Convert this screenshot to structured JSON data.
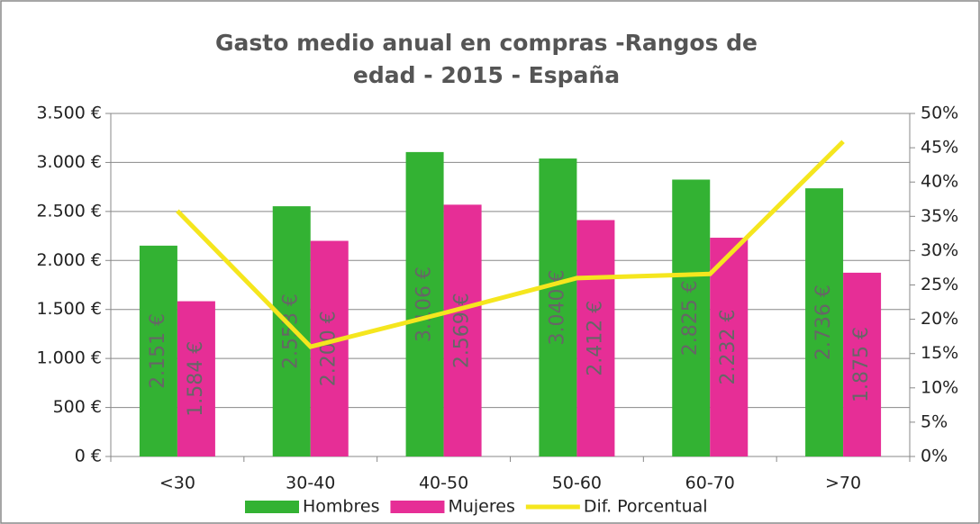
{
  "chart_data": {
    "type": "bar",
    "title": "Gasto medio anual en compras  -Rangos de edad - 2015  - España",
    "categories": [
      "<30",
      "30-40",
      "40-50",
      "50-60",
      "60-70",
      ">70"
    ],
    "series": [
      {
        "name": "Hombres",
        "color": "#33b233",
        "values": [
          2151,
          2553,
          3106,
          3040,
          2825,
          2736
        ],
        "value_labels": [
          "2.151 €",
          "2.553 €",
          "3.106 €",
          "3.040 €",
          "2.825 €",
          "2.736 €"
        ]
      },
      {
        "name": "Mujeres",
        "color": "#e62e96",
        "values": [
          1584,
          2200,
          2569,
          2412,
          2232,
          1875
        ],
        "value_labels": [
          "1.584 €",
          "2.200 €",
          "2.569 €",
          "2.412 €",
          "2.232 €",
          "1.875 €"
        ]
      },
      {
        "name": "Dif. Porcentual",
        "color": "#f5e61e",
        "type": "line",
        "axis": "y2",
        "values": [
          35.8,
          16.0,
          20.9,
          26.0,
          26.6,
          45.9
        ]
      }
    ],
    "ylim": [
      0,
      3500
    ],
    "yticks": [
      {
        "value": 0,
        "label": "0 €"
      },
      {
        "value": 500,
        "label": "500 €"
      },
      {
        "value": 1000,
        "label": "1.000 €"
      },
      {
        "value": 1500,
        "label": "1.500 €"
      },
      {
        "value": 2000,
        "label": "2.000 €"
      },
      {
        "value": 2500,
        "label": "2.500 €"
      },
      {
        "value": 3000,
        "label": "3.000 €"
      },
      {
        "value": 3500,
        "label": "3.500 €"
      }
    ],
    "y2lim": [
      0,
      50
    ],
    "y2ticks": [
      {
        "value": 0,
        "label": "0%"
      },
      {
        "value": 5,
        "label": "5%"
      },
      {
        "value": 10,
        "label": "10%"
      },
      {
        "value": 15,
        "label": "15%"
      },
      {
        "value": 20,
        "label": "20%"
      },
      {
        "value": 25,
        "label": "25%"
      },
      {
        "value": 30,
        "label": "30%"
      },
      {
        "value": 35,
        "label": "35%"
      },
      {
        "value": 40,
        "label": "40%"
      },
      {
        "value": 45,
        "label": "45%"
      },
      {
        "value": 50,
        "label": "50%"
      }
    ],
    "grid": true
  }
}
